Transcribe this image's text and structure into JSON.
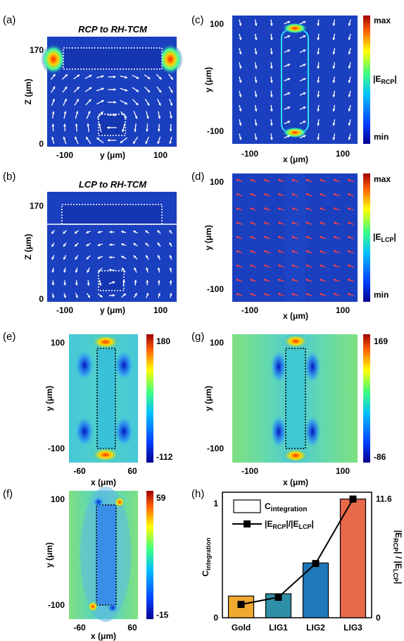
{
  "panels": {
    "a": {
      "label": "(a)",
      "title": "RCP to RH-TCM",
      "xlabel": "y (μm)",
      "ylabel": "Z (μm)",
      "xticks": [
        "-100",
        "100"
      ],
      "yticks": [
        "170",
        "0"
      ]
    },
    "b": {
      "label": "(b)",
      "title": "LCP to RH-TCM",
      "xlabel": "y (μm)",
      "ylabel": "Z (μm)",
      "xticks": [
        "-100",
        "100"
      ],
      "yticks": [
        "170",
        "0"
      ]
    },
    "c": {
      "label": "(c)",
      "xlabel": "x (μm)",
      "ylabel": "y (μm)",
      "xticks": [
        "-100",
        "100"
      ],
      "yticks": [
        "100",
        "-100"
      ],
      "cb_max": "max",
      "cb_min": "min",
      "cb_label_main": "|E",
      "cb_label_sub": "RCP",
      "cb_label_end": "|"
    },
    "d": {
      "label": "(d)",
      "xlabel": "x (μm)",
      "ylabel": "y (μm)",
      "xticks": [
        "-100",
        "100"
      ],
      "yticks": [
        "100",
        "-100"
      ],
      "cb_max": "max",
      "cb_min": "min",
      "cb_label_main": "|E",
      "cb_label_sub": "LCP",
      "cb_label_end": "|"
    },
    "e": {
      "label": "(e)",
      "xlabel": "x (μm)",
      "ylabel": "y (μm)",
      "xticks": [
        "-60",
        "60"
      ],
      "yticks": [
        "100",
        "-100"
      ],
      "cb_max": "180",
      "cb_min": "-112"
    },
    "g": {
      "label": "(g)",
      "xlabel": "x (μm)",
      "ylabel": "y (μm)",
      "xticks": [
        "-100",
        "100"
      ],
      "yticks": [
        "100",
        "-100"
      ],
      "cb_max": "169",
      "cb_min": "-86"
    },
    "f": {
      "label": "(f)",
      "xlabel": "x (μm)",
      "ylabel": "y (μm)",
      "xticks": [
        "-60",
        "60"
      ],
      "yticks": [
        "100",
        "-100"
      ],
      "cb_max": "59",
      "cb_min": "-15"
    },
    "h": {
      "label": "(h)"
    }
  },
  "colors": {
    "field_blue": "#1a3fbf",
    "colorbar": [
      "#00008f",
      "#0040ff",
      "#00bfff",
      "#40ff80",
      "#ffff00",
      "#ff8000",
      "#c00000"
    ]
  },
  "chart_data": {
    "type": "bar",
    "categories": [
      "Gold",
      "LIG1",
      "LIG2",
      "LIG3"
    ],
    "bar_colors": [
      "#f0a830",
      "#2f8fa6",
      "#1f78b8",
      "#e8684a"
    ],
    "yticks_left": [
      "1",
      "0"
    ],
    "ylim_left": [
      0,
      1.1
    ],
    "ylabel_left_main": "C",
    "ylabel_left_sub": "integration",
    "yticks_right": [
      "11.6",
      "0"
    ],
    "ylabel_right": "|E_RCP| / |E_LCP|",
    "ylabel_right_parts": {
      "a": "|E",
      "b": "RCP",
      "c": "| / |E",
      "d": "LCP",
      "e": "|"
    },
    "legend_bar_main": "C",
    "legend_bar_sub": "integration",
    "legend_line_parts": {
      "a": "|E",
      "b": "RCP",
      "c": "|/|E",
      "d": "LCP",
      "e": "|"
    },
    "series": [
      {
        "name": "C_integration",
        "kind": "bar",
        "values": [
          0.19,
          0.21,
          0.48,
          1.04
        ]
      },
      {
        "name": "|E_RCP|/|E_LCP|",
        "kind": "line",
        "values": [
          1.3,
          2.0,
          5.3,
          11.6
        ]
      }
    ]
  }
}
